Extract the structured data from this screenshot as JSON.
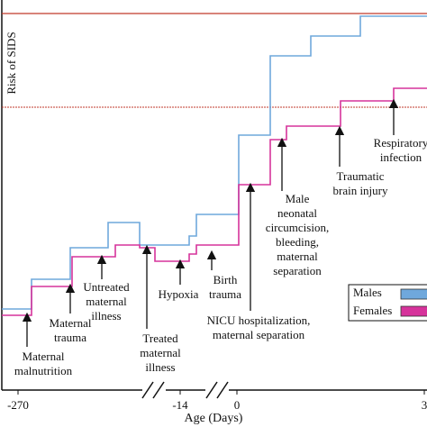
{
  "y_axis_label": "Risk of SIDS",
  "x_axis_label": "Age (Days)",
  "x_ticks": [
    "-270",
    "-14",
    "0",
    "3"
  ],
  "legend": [
    "Males",
    "Females"
  ],
  "annotations": [
    [
      "Maternal",
      "malnutrition"
    ],
    [
      "Maternal",
      "trauma"
    ],
    [
      "Untreated",
      "maternal",
      "illness"
    ],
    [
      "Treated",
      "maternal",
      "illness"
    ],
    [
      "Hypoxia"
    ],
    [
      "Birth",
      "trauma"
    ],
    [
      "NICU hospitalization,",
      "maternal separation"
    ],
    [
      "Male",
      "neonatal",
      "circumcision,",
      "bleeding,",
      "maternal",
      "separation"
    ],
    [
      "Traumatic",
      "brain injury"
    ],
    [
      "Respiratory",
      "infection"
    ]
  ]
}
